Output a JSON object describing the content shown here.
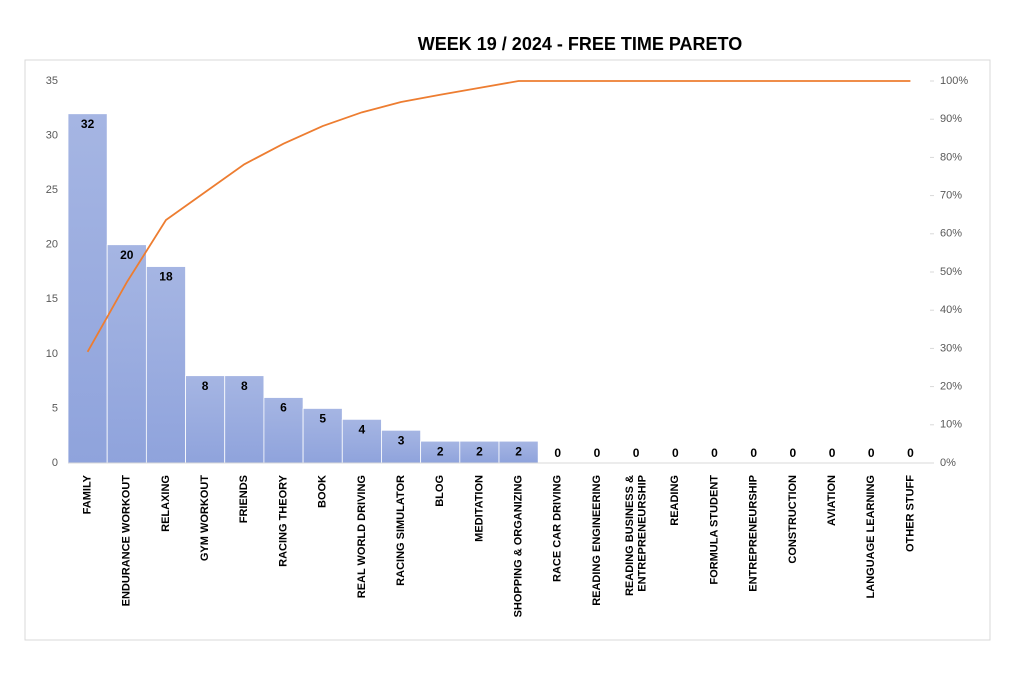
{
  "chart_data": {
    "type": "bar",
    "title": "WEEK 19 / 2024  - FREE TIME PARETO",
    "categories": [
      "FAMILY",
      "ENDURANCE WORKOUT",
      "RELAXING",
      "GYM WORKOUT",
      "FRIENDS",
      "RACING THEORY",
      "BOOK",
      "REAL WORLD DRIVING",
      "RACING SIMULATOR",
      "BLOG",
      "MEDITATION",
      "SHOPPING & ORGANIZING",
      "RACE CAR DRIVING",
      "READING ENGINEERING",
      "READING BUSINESS & ENTREPRENEURSHIP",
      "READING",
      "FORMULA STUDENT",
      "ENTREPRENEURSHIP",
      "CONSTRUCTION",
      "AVIATION",
      "LANGUAGE LEARNING",
      "OTHER STUFF"
    ],
    "values": [
      32,
      20,
      18,
      8,
      8,
      6,
      5,
      4,
      3,
      2,
      2,
      2,
      0,
      0,
      0,
      0,
      0,
      0,
      0,
      0,
      0,
      0
    ],
    "color": "#8fa3dc",
    "line": {
      "type": "line",
      "axis": "y2",
      "color": "#ed7d31",
      "values": [
        29.1,
        47.3,
        63.6,
        70.9,
        78.2,
        83.6,
        88.2,
        91.8,
        94.5,
        96.4,
        98.2,
        100,
        100,
        100,
        100,
        100,
        100,
        100,
        100,
        100,
        100,
        100
      ]
    },
    "ylim": [
      0,
      35
    ],
    "yticks": [
      0,
      5,
      10,
      15,
      20,
      25,
      30,
      35
    ],
    "y2lim": [
      0,
      100
    ],
    "y2ticks": [
      {
        "value": 0,
        "label": "0%"
      },
      {
        "value": 10,
        "label": "10%"
      },
      {
        "value": 20,
        "label": "20%"
      },
      {
        "value": 30,
        "label": "30%"
      },
      {
        "value": 40,
        "label": "40%"
      },
      {
        "value": 50,
        "label": "50%"
      },
      {
        "value": 60,
        "label": "60%"
      },
      {
        "value": 70,
        "label": "70%"
      },
      {
        "value": 80,
        "label": "80%"
      },
      {
        "value": 90,
        "label": "90%"
      },
      {
        "value": 100,
        "label": "100%"
      }
    ]
  }
}
